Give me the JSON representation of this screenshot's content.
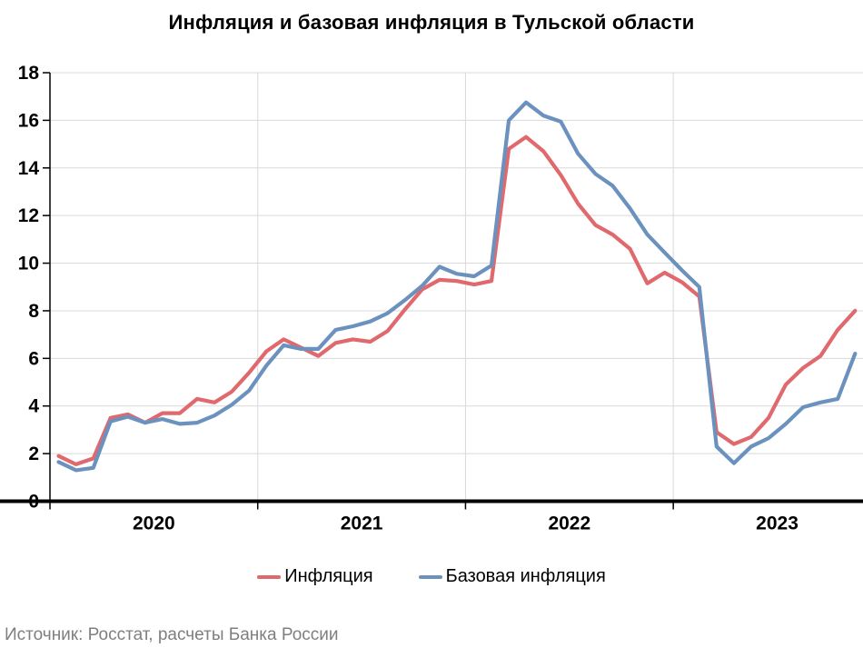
{
  "chart_data": {
    "type": "line",
    "title": "Инфляция и базовая инфляция в Тульской области",
    "source": "Источник: Росстат, расчеты Банка России",
    "unit": "percent",
    "x_start": "2020-01",
    "x_end": "2023-11",
    "x_step": "month",
    "x_year_labels": [
      "2020",
      "2021",
      "2022",
      "2023"
    ],
    "ylim": [
      0,
      18
    ],
    "ytick_step": 2,
    "grid": "on",
    "legend_position": "bottom-center",
    "grid_color": "#D9D9D9",
    "axis_color": "#000000",
    "source_color": "#7F7F7F",
    "series": [
      {
        "name": "Инфляция",
        "color": "#E0696E",
        "values": [
          1.9,
          1.55,
          1.8,
          3.5,
          3.65,
          3.3,
          3.7,
          3.7,
          4.3,
          4.15,
          4.6,
          5.4,
          6.3,
          6.8,
          6.45,
          6.1,
          6.65,
          6.8,
          6.7,
          7.15,
          8.05,
          8.9,
          9.3,
          9.25,
          9.1,
          9.25,
          14.8,
          15.3,
          14.7,
          13.7,
          12.5,
          11.6,
          11.2,
          10.6,
          9.15,
          9.6,
          9.2,
          8.6,
          2.9,
          2.4,
          2.7,
          3.5,
          4.9,
          5.6,
          6.1,
          7.2,
          8.0
        ]
      },
      {
        "name": "Базовая инфляция",
        "color": "#6B92BE",
        "values": [
          1.65,
          1.3,
          1.4,
          3.35,
          3.55,
          3.3,
          3.45,
          3.25,
          3.3,
          3.6,
          4.05,
          4.65,
          5.7,
          6.55,
          6.4,
          6.4,
          7.2,
          7.35,
          7.55,
          7.9,
          8.45,
          9.05,
          9.85,
          9.55,
          9.45,
          9.9,
          16.0,
          16.75,
          16.2,
          15.95,
          14.6,
          13.75,
          13.25,
          12.3,
          11.2,
          10.45,
          9.7,
          9.0,
          2.3,
          1.6,
          2.3,
          2.65,
          3.25,
          3.95,
          4.15,
          4.3,
          6.2
        ]
      }
    ]
  }
}
